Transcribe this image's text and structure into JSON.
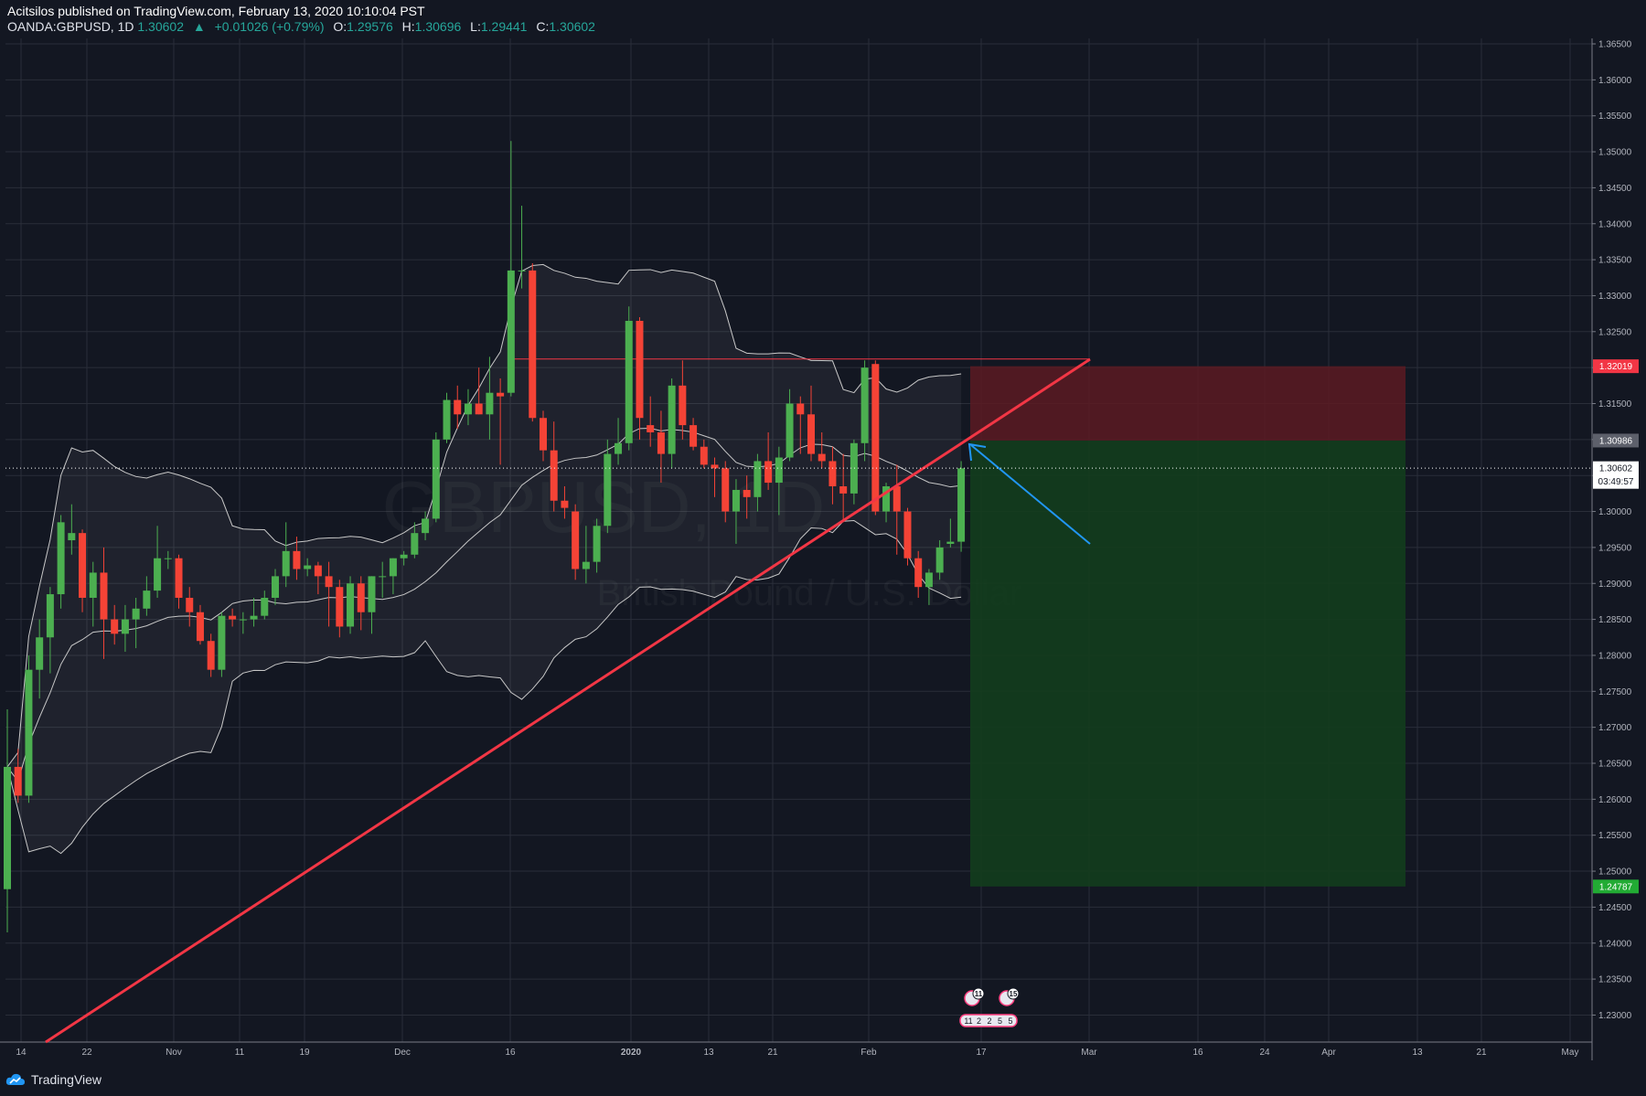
{
  "header": {
    "author_line": "Acitsilos published on TradingView.com, February 13, 2020 10:10:04 PST",
    "symbol": "OANDA:GBPUSD, 1D",
    "last": "1.30602",
    "change": "+0.01026 (+0.79%)",
    "o_label": "O:",
    "o": "1.29576",
    "h_label": "H:",
    "h": "1.30696",
    "l_label": "L:",
    "l": "1.29441",
    "c_label": "C:",
    "c": "1.30602"
  },
  "footer": {
    "brand": "TradingView"
  },
  "colors": {
    "background": "#131722",
    "grid": "#2a2e39",
    "up": "#4caf50",
    "down": "#f44336",
    "trendline": "#f23645",
    "arrow": "#2196f3",
    "stop_zone": "#5c1a22",
    "target_zone": "#133d1d",
    "bands": "#c8c8c8"
  },
  "chart_data": {
    "type": "candlestick",
    "title": "GBPUSD",
    "watermark": [
      "GBPUSD, 1D",
      "British Pound / U.S. Dollar"
    ],
    "ylim": [
      1.2265,
      1.3655
    ],
    "y_ticks": [
      "1.36500",
      "1.36000",
      "1.35500",
      "1.35000",
      "1.34500",
      "1.34000",
      "1.33500",
      "1.33000",
      "1.32500",
      "1.32000",
      "1.31500",
      "1.31000",
      "1.30500",
      "1.30000",
      "1.29500",
      "1.29000",
      "1.28500",
      "1.28000",
      "1.27500",
      "1.27000",
      "1.26500",
      "1.26000",
      "1.25500",
      "1.25000",
      "1.24500",
      "1.24000",
      "1.23500",
      "1.23000"
    ],
    "x_ticks": [
      "14",
      "22",
      "Nov",
      "11",
      "19",
      "Dec",
      "16",
      "2020",
      "13",
      "21",
      "Feb",
      "17",
      "Mar",
      "16",
      "24",
      "Apr",
      "13",
      "21",
      "May"
    ],
    "price_badges": {
      "stop": "1.32019",
      "entry": "1.30986",
      "last": "1.30602",
      "countdown": "03:49:57",
      "target": "1.24787"
    },
    "position": {
      "type": "short",
      "entry": 1.30986,
      "stop": 1.32019,
      "target": 1.24787
    },
    "trendline": {
      "from": [
        "Oct 14",
        1.226
      ],
      "to": [
        "Mar 2",
        1.321
      ]
    },
    "resistance_line": 1.3212,
    "candles": [
      {
        "o": 1.2475,
        "h": 1.2725,
        "l": 1.2415,
        "c": 1.2645
      },
      {
        "o": 1.2645,
        "h": 1.267,
        "l": 1.2595,
        "c": 1.2605
      },
      {
        "o": 1.2605,
        "h": 1.28,
        "l": 1.2595,
        "c": 1.278
      },
      {
        "o": 1.278,
        "h": 1.285,
        "l": 1.274,
        "c": 1.2825
      },
      {
        "o": 1.2825,
        "h": 1.2895,
        "l": 1.2775,
        "c": 1.2885
      },
      {
        "o": 1.2885,
        "h": 1.2995,
        "l": 1.2865,
        "c": 1.2985
      },
      {
        "o": 1.296,
        "h": 1.301,
        "l": 1.294,
        "c": 1.297
      },
      {
        "o": 1.297,
        "h": 1.2975,
        "l": 1.286,
        "c": 1.288
      },
      {
        "o": 1.288,
        "h": 1.293,
        "l": 1.284,
        "c": 1.2915
      },
      {
        "o": 1.2915,
        "h": 1.295,
        "l": 1.2795,
        "c": 1.285
      },
      {
        "o": 1.285,
        "h": 1.287,
        "l": 1.2815,
        "c": 1.283
      },
      {
        "o": 1.283,
        "h": 1.287,
        "l": 1.2805,
        "c": 1.285
      },
      {
        "o": 1.285,
        "h": 1.288,
        "l": 1.281,
        "c": 1.2865
      },
      {
        "o": 1.2865,
        "h": 1.291,
        "l": 1.2855,
        "c": 1.289
      },
      {
        "o": 1.289,
        "h": 1.298,
        "l": 1.288,
        "c": 1.2935
      },
      {
        "o": 1.2935,
        "h": 1.2945,
        "l": 1.292,
        "c": 1.2935
      },
      {
        "o": 1.2935,
        "h": 1.294,
        "l": 1.2865,
        "c": 1.288
      },
      {
        "o": 1.288,
        "h": 1.2895,
        "l": 1.284,
        "c": 1.286
      },
      {
        "o": 1.286,
        "h": 1.287,
        "l": 1.2815,
        "c": 1.282
      },
      {
        "o": 1.282,
        "h": 1.283,
        "l": 1.277,
        "c": 1.278
      },
      {
        "o": 1.278,
        "h": 1.286,
        "l": 1.277,
        "c": 1.2855
      },
      {
        "o": 1.2855,
        "h": 1.2865,
        "l": 1.284,
        "c": 1.285
      },
      {
        "o": 1.285,
        "h": 1.286,
        "l": 1.283,
        "c": 1.285
      },
      {
        "o": 1.285,
        "h": 1.288,
        "l": 1.284,
        "c": 1.2855
      },
      {
        "o": 1.2855,
        "h": 1.289,
        "l": 1.285,
        "c": 1.288
      },
      {
        "o": 1.288,
        "h": 1.292,
        "l": 1.287,
        "c": 1.291
      },
      {
        "o": 1.291,
        "h": 1.2985,
        "l": 1.2895,
        "c": 1.2945
      },
      {
        "o": 1.2945,
        "h": 1.2965,
        "l": 1.2905,
        "c": 1.292
      },
      {
        "o": 1.292,
        "h": 1.2935,
        "l": 1.291,
        "c": 1.2925
      },
      {
        "o": 1.2925,
        "h": 1.293,
        "l": 1.2885,
        "c": 1.291
      },
      {
        "o": 1.291,
        "h": 1.293,
        "l": 1.284,
        "c": 1.2895
      },
      {
        "o": 1.2895,
        "h": 1.2905,
        "l": 1.2825,
        "c": 1.284
      },
      {
        "o": 1.284,
        "h": 1.291,
        "l": 1.283,
        "c": 1.29
      },
      {
        "o": 1.29,
        "h": 1.291,
        "l": 1.2835,
        "c": 1.286
      },
      {
        "o": 1.286,
        "h": 1.291,
        "l": 1.283,
        "c": 1.291
      },
      {
        "o": 1.291,
        "h": 1.293,
        "l": 1.288,
        "c": 1.291
      },
      {
        "o": 1.291,
        "h": 1.2935,
        "l": 1.2885,
        "c": 1.2935
      },
      {
        "o": 1.2935,
        "h": 1.2945,
        "l": 1.2925,
        "c": 1.294
      },
      {
        "o": 1.294,
        "h": 1.2985,
        "l": 1.2935,
        "c": 1.297
      },
      {
        "o": 1.297,
        "h": 1.3,
        "l": 1.296,
        "c": 1.299
      },
      {
        "o": 1.299,
        "h": 1.311,
        "l": 1.2985,
        "c": 1.31
      },
      {
        "o": 1.31,
        "h": 1.3165,
        "l": 1.3095,
        "c": 1.3155
      },
      {
        "o": 1.3155,
        "h": 1.3175,
        "l": 1.3115,
        "c": 1.3135
      },
      {
        "o": 1.3135,
        "h": 1.317,
        "l": 1.312,
        "c": 1.315
      },
      {
        "o": 1.315,
        "h": 1.32,
        "l": 1.3135,
        "c": 1.3135
      },
      {
        "o": 1.3135,
        "h": 1.3215,
        "l": 1.31,
        "c": 1.3165
      },
      {
        "o": 1.3165,
        "h": 1.3185,
        "l": 1.3065,
        "c": 1.316
      },
      {
        "o": 1.3165,
        "h": 1.3515,
        "l": 1.316,
        "c": 1.3335
      },
      {
        "o": 1.3335,
        "h": 1.3425,
        "l": 1.331,
        "c": 1.3335
      },
      {
        "o": 1.3335,
        "h": 1.3345,
        "l": 1.3125,
        "c": 1.313
      },
      {
        "o": 1.313,
        "h": 1.314,
        "l": 1.307,
        "c": 1.3085
      },
      {
        "o": 1.3085,
        "h": 1.3125,
        "l": 1.3,
        "c": 1.3015
      },
      {
        "o": 1.3015,
        "h": 1.3035,
        "l": 1.299,
        "c": 1.3005
      },
      {
        "o": 1.3,
        "h": 1.301,
        "l": 1.2905,
        "c": 1.292
      },
      {
        "o": 1.292,
        "h": 1.298,
        "l": 1.29,
        "c": 1.293
      },
      {
        "o": 1.293,
        "h": 1.299,
        "l": 1.2915,
        "c": 1.298
      },
      {
        "o": 1.298,
        "h": 1.31,
        "l": 1.297,
        "c": 1.308
      },
      {
        "o": 1.308,
        "h": 1.313,
        "l": 1.3065,
        "c": 1.3095
      },
      {
        "o": 1.3095,
        "h": 1.3285,
        "l": 1.3085,
        "c": 1.3265
      },
      {
        "o": 1.3265,
        "h": 1.327,
        "l": 1.31,
        "c": 1.313
      },
      {
        "o": 1.312,
        "h": 1.316,
        "l": 1.309,
        "c": 1.311
      },
      {
        "o": 1.311,
        "h": 1.314,
        "l": 1.304,
        "c": 1.308
      },
      {
        "o": 1.308,
        "h": 1.3185,
        "l": 1.306,
        "c": 1.3175
      },
      {
        "o": 1.3175,
        "h": 1.321,
        "l": 1.31,
        "c": 1.312
      },
      {
        "o": 1.312,
        "h": 1.313,
        "l": 1.3085,
        "c": 1.309
      },
      {
        "o": 1.309,
        "h": 1.31,
        "l": 1.306,
        "c": 1.3065
      },
      {
        "o": 1.3065,
        "h": 1.3075,
        "l": 1.302,
        "c": 1.306
      },
      {
        "o": 1.306,
        "h": 1.307,
        "l": 1.2985,
        "c": 1.3
      },
      {
        "o": 1.3,
        "h": 1.3045,
        "l": 1.2955,
        "c": 1.303
      },
      {
        "o": 1.303,
        "h": 1.305,
        "l": 1.299,
        "c": 1.302
      },
      {
        "o": 1.302,
        "h": 1.308,
        "l": 1.3,
        "c": 1.307
      },
      {
        "o": 1.307,
        "h": 1.311,
        "l": 1.303,
        "c": 1.304
      },
      {
        "o": 1.304,
        "h": 1.309,
        "l": 1.2995,
        "c": 1.3075
      },
      {
        "o": 1.3075,
        "h": 1.317,
        "l": 1.307,
        "c": 1.315
      },
      {
        "o": 1.315,
        "h": 1.316,
        "l": 1.308,
        "c": 1.3135
      },
      {
        "o": 1.3135,
        "h": 1.3175,
        "l": 1.307,
        "c": 1.308
      },
      {
        "o": 1.308,
        "h": 1.311,
        "l": 1.306,
        "c": 1.307
      },
      {
        "o": 1.307,
        "h": 1.309,
        "l": 1.301,
        "c": 1.3035
      },
      {
        "o": 1.3035,
        "h": 1.308,
        "l": 1.2985,
        "c": 1.3025
      },
      {
        "o": 1.3025,
        "h": 1.31,
        "l": 1.301,
        "c": 1.3095
      },
      {
        "o": 1.3095,
        "h": 1.321,
        "l": 1.307,
        "c": 1.32
      },
      {
        "o": 1.3205,
        "h": 1.321,
        "l": 1.2995,
        "c": 1.3
      },
      {
        "o": 1.3,
        "h": 1.304,
        "l": 1.2985,
        "c": 1.3035
      },
      {
        "o": 1.3035,
        "h": 1.3065,
        "l": 1.294,
        "c": 1.3
      },
      {
        "o": 1.3,
        "h": 1.3005,
        "l": 1.2925,
        "c": 1.2935
      },
      {
        "o": 1.2935,
        "h": 1.2945,
        "l": 1.288,
        "c": 1.2895
      },
      {
        "o": 1.2895,
        "h": 1.292,
        "l": 1.287,
        "c": 1.2915
      },
      {
        "o": 1.2915,
        "h": 1.296,
        "l": 1.2905,
        "c": 1.295
      },
      {
        "o": 1.2955,
        "h": 1.299,
        "l": 1.295,
        "c": 1.2958
      },
      {
        "o": 1.2958,
        "h": 1.307,
        "l": 1.2944,
        "c": 1.306
      }
    ]
  }
}
